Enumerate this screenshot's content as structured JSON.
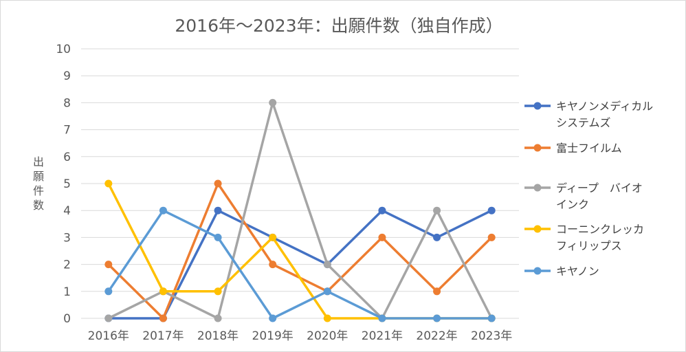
{
  "chart_data": {
    "type": "line",
    "title": "2016年〜2023年：出願件数（独自作成）",
    "ylabel": "出願件数",
    "xlabel": "",
    "categories": [
      "2016年",
      "2017年",
      "2018年",
      "2019年",
      "2020年",
      "2021年",
      "2022年",
      "2023年"
    ],
    "ylim": [
      0,
      10
    ],
    "yticks": [
      0,
      1,
      2,
      3,
      4,
      5,
      6,
      7,
      8,
      9,
      10
    ],
    "grid": true,
    "legend_position": "right",
    "series": [
      {
        "name": "キヤノンメディカルシステムズ",
        "legend_lines": [
          "キヤノンメディカル",
          "システムズ"
        ],
        "color": "#4472c4",
        "values": [
          0,
          0,
          4,
          3,
          2,
          4,
          3,
          4
        ]
      },
      {
        "name": "富士フイルム",
        "legend_lines": [
          "富士フイルム"
        ],
        "color": "#ed7d31",
        "values": [
          2,
          0,
          5,
          2,
          1,
          3,
          1,
          3
        ]
      },
      {
        "name": "ディープ　バイオインク",
        "legend_lines": [
          "ディープ　バイオ",
          "インク"
        ],
        "color": "#a5a5a5",
        "values": [
          0,
          1,
          0,
          8,
          2,
          0,
          4,
          0
        ]
      },
      {
        "name": "コーニンクレッカフィリップス",
        "legend_lines": [
          "コーニンクレッカ",
          "フィリップス"
        ],
        "color": "#ffc000",
        "values": [
          5,
          1,
          1,
          3,
          0,
          0,
          0,
          0
        ]
      },
      {
        "name": "キヤノン",
        "legend_lines": [
          "キヤノン"
        ],
        "color": "#5b9bd5",
        "values": [
          1,
          4,
          3,
          0,
          1,
          0,
          0,
          0
        ]
      }
    ]
  }
}
